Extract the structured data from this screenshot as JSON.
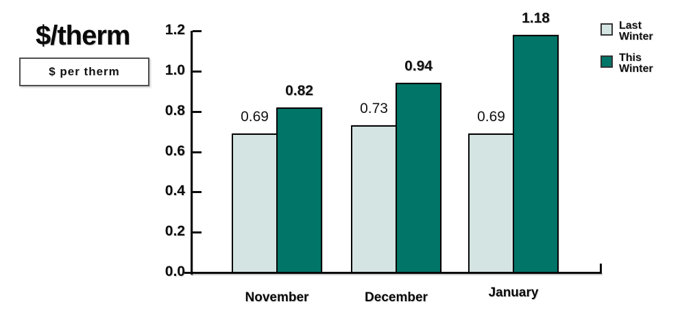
{
  "title": "$/therm",
  "unit_label": "$ per therm",
  "colors": {
    "last_winter": "#d4e4e2",
    "this_winter": "#007568",
    "axis": "#0a0a0a"
  },
  "legend": {
    "position": "top-right",
    "items": [
      {
        "label": "Last Winter",
        "color": "#d4e4e2"
      },
      {
        "label": "This Winter",
        "color": "#007568"
      }
    ]
  },
  "chart_data": {
    "type": "bar",
    "title": "$/therm",
    "subtitle": "$ per therm",
    "categories": [
      "November",
      "December",
      "January"
    ],
    "series": [
      {
        "name": "Last Winter",
        "color": "#d4e4e2",
        "values": [
          0.69,
          0.73,
          0.69
        ],
        "value_labels": [
          "0.69",
          "0.73",
          "0.69"
        ],
        "labels_bold": false
      },
      {
        "name": "This Winter",
        "color": "#007568",
        "values": [
          0.82,
          0.94,
          1.18
        ],
        "value_labels": [
          "0.82",
          "0.94",
          "1.18"
        ],
        "labels_bold": true
      }
    ],
    "xlabel": "",
    "ylabel": "$/therm",
    "ylim": [
      0,
      1.2
    ],
    "ytick_step": 0.2,
    "ytick_labels": [
      "0.0",
      "0.2",
      "0.4",
      "0.6",
      "0.8",
      "1.0",
      "1.2"
    ],
    "grid": false,
    "legend_position": "top-right"
  }
}
